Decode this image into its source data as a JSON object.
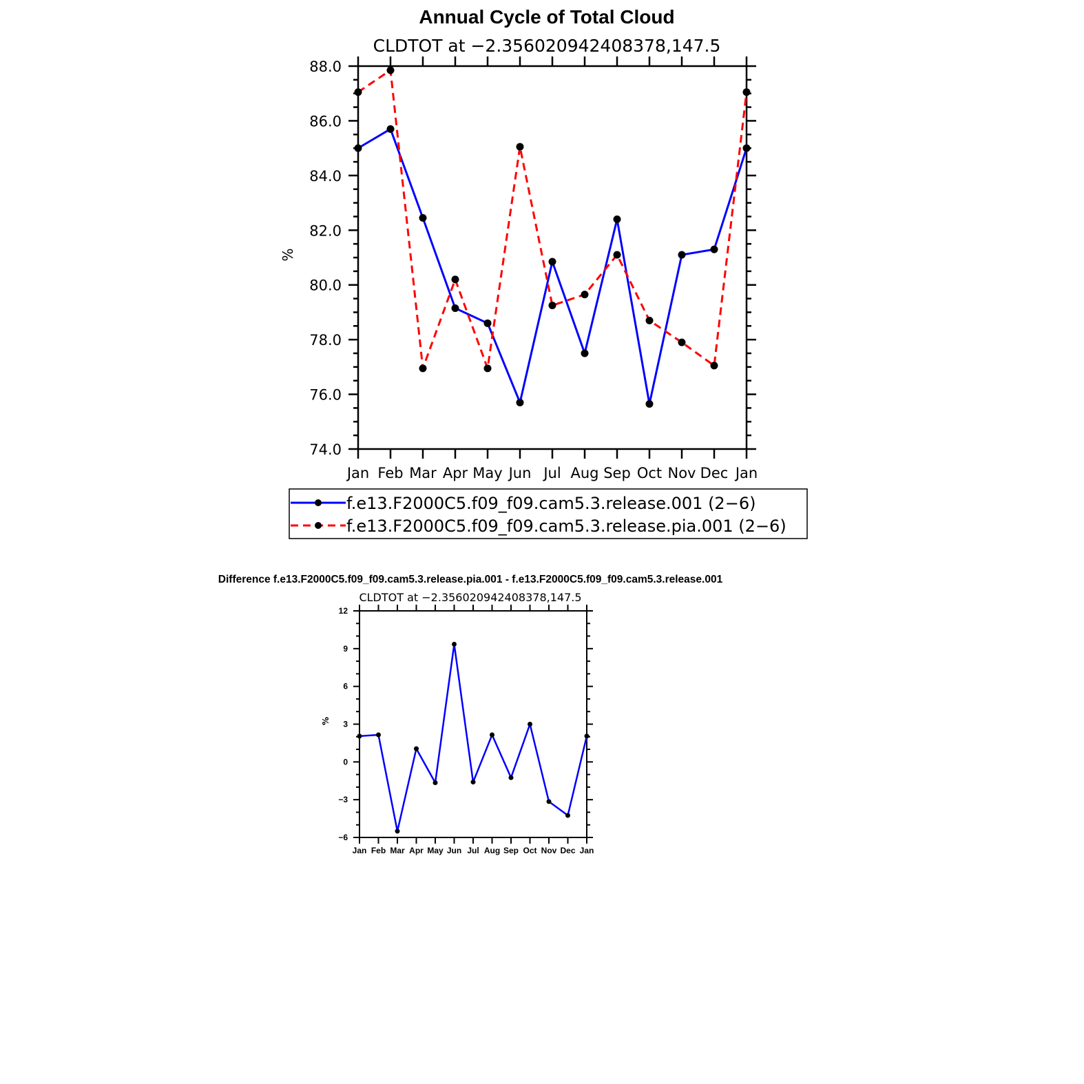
{
  "chart_data": [
    {
      "type": "line",
      "title": "Annual Cycle of Total Cloud",
      "subtitle": "CLDTOT  at  −2.356020942408378,147.5",
      "xlabel": "",
      "ylabel": "%",
      "categories": [
        "Jan",
        "Feb",
        "Mar",
        "Apr",
        "May",
        "Jun",
        "Jul",
        "Aug",
        "Sep",
        "Oct",
        "Nov",
        "Dec",
        "Jan"
      ],
      "ylim": [
        74,
        88
      ],
      "yticks": [
        "74.0",
        "76.0",
        "78.0",
        "80.0",
        "82.0",
        "84.0",
        "86.0",
        "88.0"
      ],
      "grid": false,
      "legend_position": "bottom",
      "series": [
        {
          "name": "f.e13.F2000C5.f09_f09.cam5.3.release.001  (2−6)",
          "color": "#0000ff",
          "dash": "solid",
          "values": [
            85.0,
            85.7,
            82.45,
            79.15,
            78.6,
            75.7,
            80.85,
            77.5,
            82.4,
            75.65,
            81.1,
            81.3,
            85.0
          ]
        },
        {
          "name": "f.e13.F2000C5.f09_f09.cam5.3.release.pia.001  (2−6)",
          "color": "#ff0000",
          "dash": "dashed",
          "values": [
            87.05,
            87.85,
            76.95,
            80.2,
            76.95,
            85.05,
            79.25,
            79.65,
            81.1,
            78.7,
            77.9,
            77.05,
            87.05
          ]
        }
      ]
    },
    {
      "type": "line",
      "title": "Difference f.e13.F2000C5.f09_f09.cam5.3.release.pia.001 - f.e13.F2000C5.f09_f09.cam5.3.release.001",
      "subtitle": "CLDTOT  at  −2.356020942408378,147.5",
      "xlabel": "",
      "ylabel": "%",
      "categories": [
        "Jan",
        "Feb",
        "Mar",
        "Apr",
        "May",
        "Jun",
        "Jul",
        "Aug",
        "Sep",
        "Oct",
        "Nov",
        "Dec",
        "Jan"
      ],
      "ylim": [
        -6,
        12
      ],
      "yticks": [
        "−6",
        "−3",
        "0",
        "3",
        "6",
        "9",
        "12"
      ],
      "grid": false,
      "series": [
        {
          "color": "#0000ff",
          "dash": "solid",
          "values": [
            2.05,
            2.15,
            -5.5,
            1.05,
            -1.65,
            9.35,
            -1.6,
            2.15,
            -1.25,
            3.0,
            -3.15,
            -4.25,
            2.05
          ]
        }
      ]
    }
  ]
}
